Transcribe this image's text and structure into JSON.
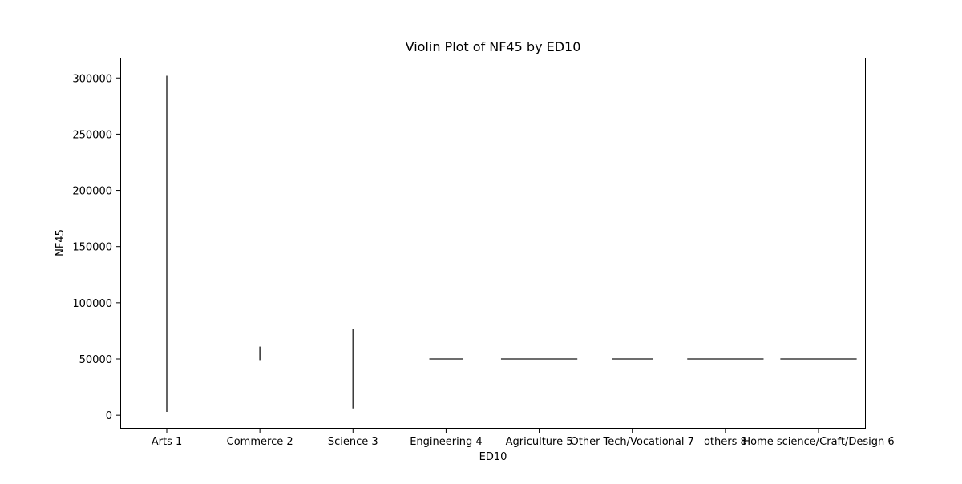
{
  "chart_data": {
    "type": "violin",
    "title": "Violin Plot of NF45 by ED10",
    "xlabel": "ED10",
    "ylabel": "NF45",
    "ylim": [
      -12000,
      318000
    ],
    "yticks": [
      0,
      50000,
      100000,
      150000,
      200000,
      250000,
      300000
    ],
    "ytick_labels": [
      "0",
      "50000",
      "100000",
      "150000",
      "200000",
      "250000",
      "300000"
    ],
    "categories": [
      "Arts 1",
      "Commerce 2",
      "Science 3",
      "Engineering 4",
      "Agriculture 5",
      "Other Tech/Vocational 7",
      "others 8",
      "Home science/Craft/Design 6"
    ],
    "series": [
      {
        "category": "Arts 1",
        "shape": "vertical",
        "min": 3000,
        "max": 302000,
        "center": 50000,
        "width": 0
      },
      {
        "category": "Commerce 2",
        "shape": "vertical",
        "min": 49000,
        "max": 61000,
        "center": 50000,
        "width": 0
      },
      {
        "category": "Science 3",
        "shape": "vertical",
        "min": 6000,
        "max": 77000,
        "center": 50000,
        "width": 0
      },
      {
        "category": "Engineering 4",
        "shape": "horizontal",
        "min": 50000,
        "max": 50000,
        "center": 50000,
        "width": 0.36
      },
      {
        "category": "Agriculture 5",
        "shape": "horizontal",
        "min": 50000,
        "max": 50000,
        "center": 50000,
        "width": 0.82
      },
      {
        "category": "Other Tech/Vocational 7",
        "shape": "horizontal",
        "min": 50000,
        "max": 50000,
        "center": 50000,
        "width": 0.44
      },
      {
        "category": "others 8",
        "shape": "horizontal",
        "min": 50000,
        "max": 50000,
        "center": 50000,
        "width": 0.82
      },
      {
        "category": "Home science/Craft/Design 6",
        "shape": "horizontal",
        "min": 50000,
        "max": 50000,
        "center": 50000,
        "width": 0.82
      }
    ],
    "grid": false,
    "legend": "none",
    "mark_color": "#3d3d3d"
  }
}
